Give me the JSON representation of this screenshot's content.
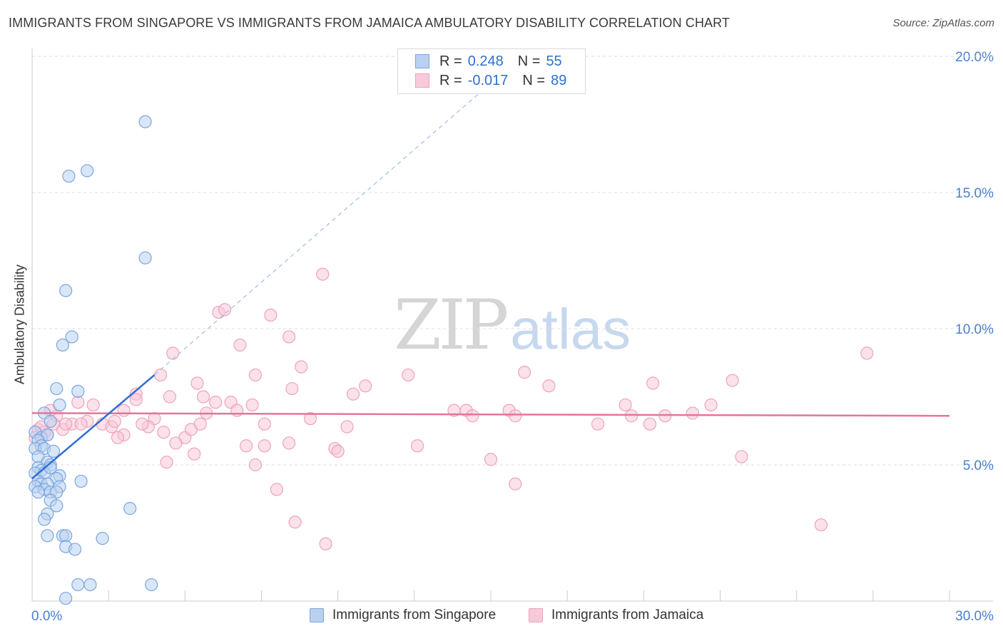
{
  "header": {
    "title": "IMMIGRANTS FROM SINGAPORE VS IMMIGRANTS FROM JAMAICA AMBULATORY DISABILITY CORRELATION CHART",
    "source": "Source: ZipAtlas.com"
  },
  "legend": {
    "rows": [
      {
        "r_label": "R =",
        "r_value": "0.248",
        "n_label": "N =",
        "n_value": "55"
      },
      {
        "r_label": "R =",
        "r_value": "-0.017",
        "n_label": "N =",
        "n_value": "89"
      }
    ]
  },
  "bottom_legend": {
    "singapore": "Immigrants from Singapore",
    "jamaica": "Immigrants from Jamaica"
  },
  "watermark": {
    "zip": "ZIP",
    "atlas": "atlas"
  },
  "colors": {
    "singapore_fill": "#b9d1f0",
    "singapore_stroke": "#7aa6df",
    "singapore_line": "#2f6fd0",
    "jamaica_fill": "#f8c9d8",
    "jamaica_stroke": "#eda3bb",
    "jamaica_line": "#e5749c",
    "tick_label": "#4a7fcf",
    "grid": "#dddddd"
  },
  "chart_data": {
    "type": "scatter",
    "title": "IMMIGRANTS FROM SINGAPORE VS IMMIGRANTS FROM JAMAICA AMBULATORY DISABILITY CORRELATION CHART",
    "xlabel": "",
    "ylabel": "Ambulatory Disability",
    "xlim": [
      0,
      30
    ],
    "ylim": [
      0,
      20
    ],
    "x_tick_labels": [
      "0.0%",
      "30.0%"
    ],
    "y_ticks": [
      5,
      10,
      15,
      20
    ],
    "y_tick_labels": [
      "5.0%",
      "10.0%",
      "15.0%",
      "20.0%"
    ],
    "grid": "horizontal dashed",
    "legend_position": "top-center",
    "series": [
      {
        "name": "Immigrants from Singapore",
        "R": 0.248,
        "N": 55,
        "trend": {
          "x": [
            0.0,
            4.0
          ],
          "y": [
            4.5,
            8.3
          ],
          "extended_x": [
            4.0,
            15.5
          ],
          "extended_y": [
            8.3,
            19.5
          ]
        },
        "points": [
          [
            3.7,
            17.6
          ],
          [
            1.8,
            15.8
          ],
          [
            1.2,
            15.6
          ],
          [
            3.7,
            12.6
          ],
          [
            1.1,
            11.4
          ],
          [
            1.3,
            9.7
          ],
          [
            1.0,
            9.4
          ],
          [
            0.8,
            7.8
          ],
          [
            1.5,
            7.7
          ],
          [
            0.9,
            7.2
          ],
          [
            0.4,
            6.9
          ],
          [
            0.6,
            6.6
          ],
          [
            0.1,
            6.2
          ],
          [
            0.3,
            6.0
          ],
          [
            0.5,
            6.1
          ],
          [
            0.2,
            5.9
          ],
          [
            0.3,
            5.7
          ],
          [
            0.1,
            5.6
          ],
          [
            0.4,
            5.6
          ],
          [
            0.7,
            5.5
          ],
          [
            0.2,
            5.3
          ],
          [
            0.5,
            5.1
          ],
          [
            0.6,
            5.0
          ],
          [
            0.2,
            4.9
          ],
          [
            0.3,
            4.8
          ],
          [
            0.1,
            4.7
          ],
          [
            0.4,
            4.7
          ],
          [
            0.9,
            4.6
          ],
          [
            0.8,
            4.5
          ],
          [
            1.6,
            4.4
          ],
          [
            0.2,
            4.4
          ],
          [
            0.3,
            4.3
          ],
          [
            0.5,
            4.3
          ],
          [
            0.1,
            4.2
          ],
          [
            0.9,
            4.2
          ],
          [
            0.4,
            4.1
          ],
          [
            0.6,
            4.0
          ],
          [
            0.8,
            4.0
          ],
          [
            0.2,
            4.0
          ],
          [
            0.6,
            3.7
          ],
          [
            0.8,
            3.5
          ],
          [
            3.2,
            3.4
          ],
          [
            0.5,
            3.2
          ],
          [
            0.4,
            3.0
          ],
          [
            0.5,
            2.4
          ],
          [
            1.0,
            2.4
          ],
          [
            1.1,
            2.4
          ],
          [
            2.3,
            2.3
          ],
          [
            1.1,
            2.0
          ],
          [
            1.4,
            1.9
          ],
          [
            1.5,
            0.6
          ],
          [
            1.9,
            0.6
          ],
          [
            3.9,
            0.6
          ],
          [
            1.1,
            0.1
          ],
          [
            0.6,
            4.9
          ]
        ]
      },
      {
        "name": "Immigrants from Jamaica",
        "R": -0.017,
        "N": 89,
        "trend": {
          "x": [
            0.0,
            30.0
          ],
          "y": [
            6.9,
            6.8
          ]
        },
        "points": [
          [
            9.5,
            12.0
          ],
          [
            6.1,
            10.6
          ],
          [
            6.3,
            10.7
          ],
          [
            7.8,
            10.5
          ],
          [
            8.4,
            9.7
          ],
          [
            6.8,
            9.4
          ],
          [
            4.6,
            9.1
          ],
          [
            27.3,
            9.1
          ],
          [
            8.8,
            8.6
          ],
          [
            4.2,
            8.3
          ],
          [
            7.3,
            8.3
          ],
          [
            12.3,
            8.3
          ],
          [
            16.1,
            8.4
          ],
          [
            5.4,
            8.0
          ],
          [
            20.3,
            8.0
          ],
          [
            10.9,
            7.9
          ],
          [
            16.9,
            7.9
          ],
          [
            3.4,
            7.6
          ],
          [
            3.4,
            7.4
          ],
          [
            4.5,
            7.5
          ],
          [
            8.5,
            7.8
          ],
          [
            10.5,
            7.6
          ],
          [
            5.6,
            7.5
          ],
          [
            6.0,
            7.3
          ],
          [
            6.5,
            7.3
          ],
          [
            7.2,
            7.2
          ],
          [
            14.2,
            7.0
          ],
          [
            15.6,
            7.0
          ],
          [
            19.4,
            7.2
          ],
          [
            13.8,
            7.0
          ],
          [
            2.0,
            7.2
          ],
          [
            1.5,
            7.3
          ],
          [
            3.0,
            7.0
          ],
          [
            5.7,
            6.9
          ],
          [
            6.7,
            7.0
          ],
          [
            4.0,
            6.7
          ],
          [
            0.8,
            6.8
          ],
          [
            0.6,
            7.0
          ],
          [
            1.3,
            6.5
          ],
          [
            1.8,
            6.6
          ],
          [
            2.3,
            6.5
          ],
          [
            2.6,
            6.4
          ],
          [
            3.0,
            6.1
          ],
          [
            2.8,
            6.0
          ],
          [
            3.8,
            6.4
          ],
          [
            5.0,
            6.0
          ],
          [
            5.2,
            6.3
          ],
          [
            5.5,
            6.5
          ],
          [
            7.6,
            6.5
          ],
          [
            9.1,
            6.7
          ],
          [
            10.3,
            6.4
          ],
          [
            14.4,
            6.8
          ],
          [
            15.8,
            6.8
          ],
          [
            18.5,
            6.5
          ],
          [
            19.6,
            6.8
          ],
          [
            20.2,
            6.5
          ],
          [
            21.6,
            6.9
          ],
          [
            22.2,
            7.2
          ],
          [
            22.9,
            8.1
          ],
          [
            0.2,
            6.3
          ],
          [
            0.4,
            6.2
          ],
          [
            0.1,
            6.0
          ],
          [
            0.5,
            6.1
          ],
          [
            0.3,
            6.4
          ],
          [
            1.0,
            6.3
          ],
          [
            1.1,
            6.5
          ],
          [
            4.3,
            6.2
          ],
          [
            4.7,
            5.8
          ],
          [
            5.3,
            5.4
          ],
          [
            7.0,
            5.7
          ],
          [
            7.6,
            5.7
          ],
          [
            8.4,
            5.8
          ],
          [
            9.9,
            5.6
          ],
          [
            12.6,
            5.7
          ],
          [
            7.3,
            5.0
          ],
          [
            4.4,
            5.1
          ],
          [
            15.0,
            5.2
          ],
          [
            10.0,
            5.5
          ],
          [
            20.7,
            6.8
          ],
          [
            23.2,
            5.3
          ],
          [
            8.0,
            4.1
          ],
          [
            15.8,
            4.3
          ],
          [
            8.6,
            2.9
          ],
          [
            9.6,
            2.1
          ],
          [
            25.8,
            2.8
          ],
          [
            3.6,
            6.5
          ],
          [
            2.7,
            6.6
          ],
          [
            1.6,
            6.5
          ],
          [
            0.7,
            6.5
          ]
        ]
      }
    ]
  }
}
